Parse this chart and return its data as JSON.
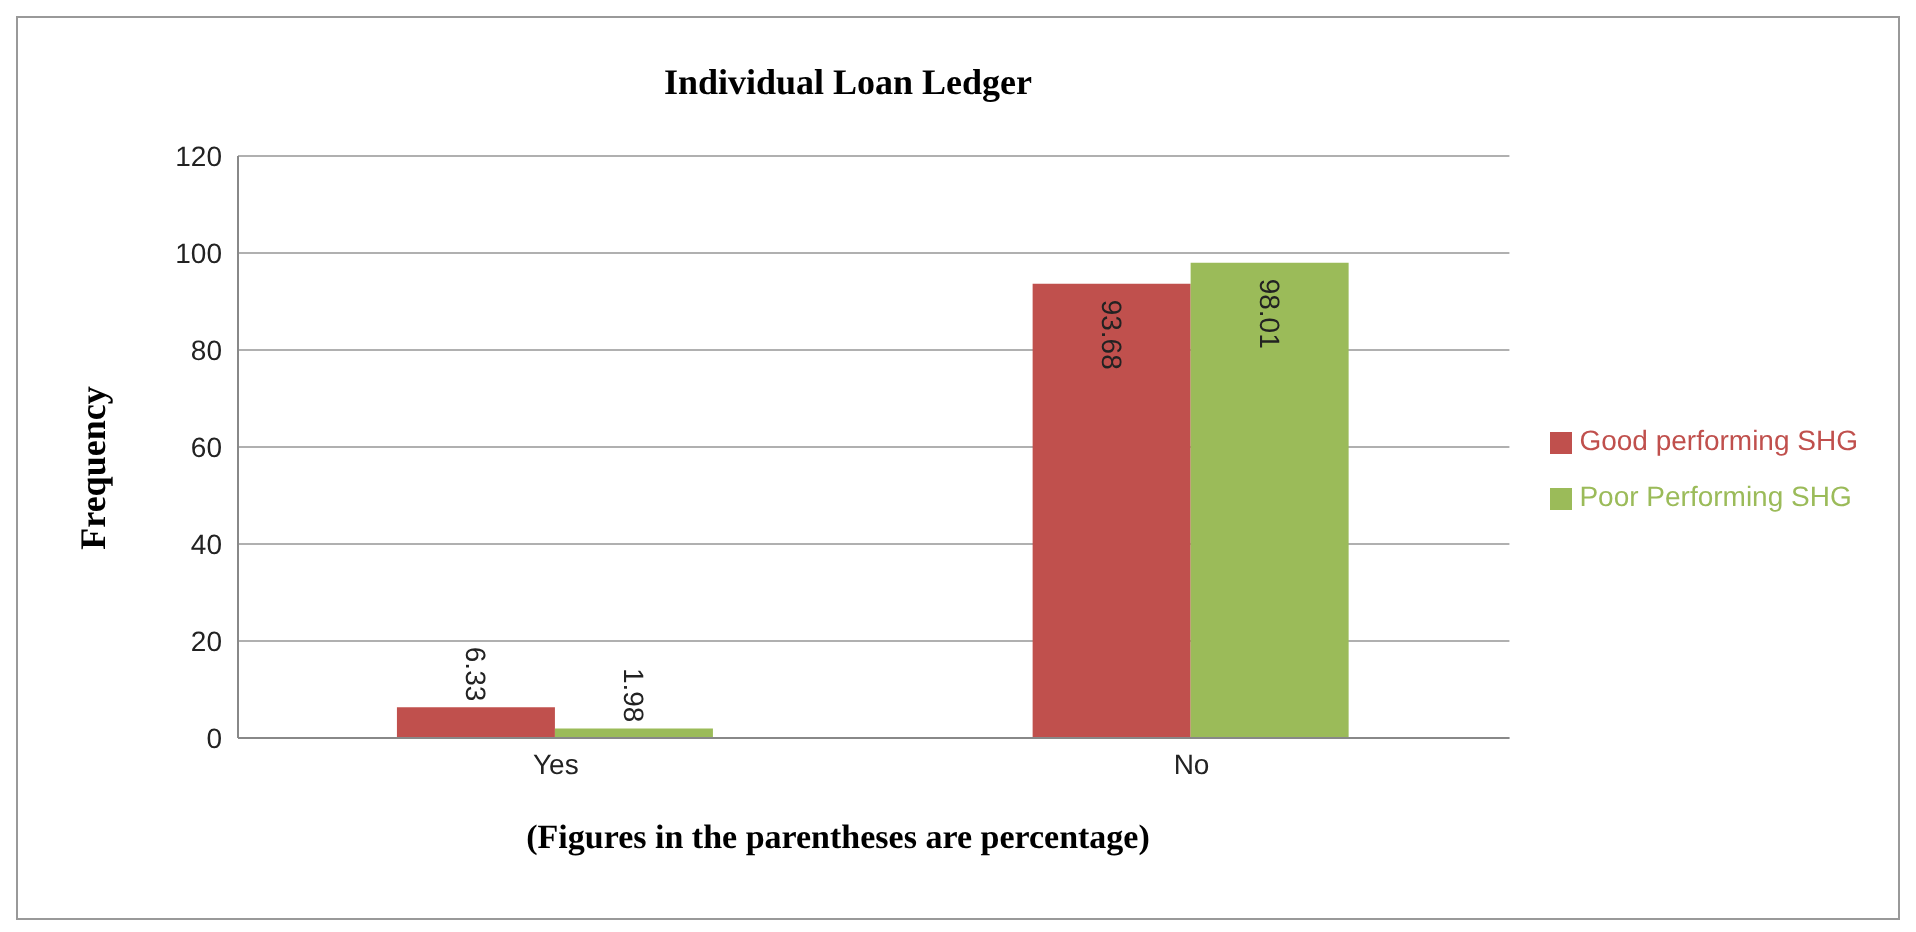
{
  "chart_data": {
    "type": "bar",
    "title": "Individual  Loan Ledger",
    "xlabel": "(Figures in the parentheses are percentage)",
    "ylabel": "Frequency",
    "categories": [
      "Yes",
      "No"
    ],
    "series": [
      {
        "name": "Good performing SHG",
        "color": "#c0504d",
        "values": [
          6.33,
          93.68
        ]
      },
      {
        "name": "Poor Performing SHG",
        "color": "#9bbb59",
        "values": [
          1.98,
          98.01
        ]
      }
    ],
    "ylim": [
      0,
      120
    ],
    "yticks": [
      0,
      20,
      40,
      60,
      80,
      100,
      120
    ],
    "grid": "y",
    "legend": "right",
    "data_labels": true
  }
}
